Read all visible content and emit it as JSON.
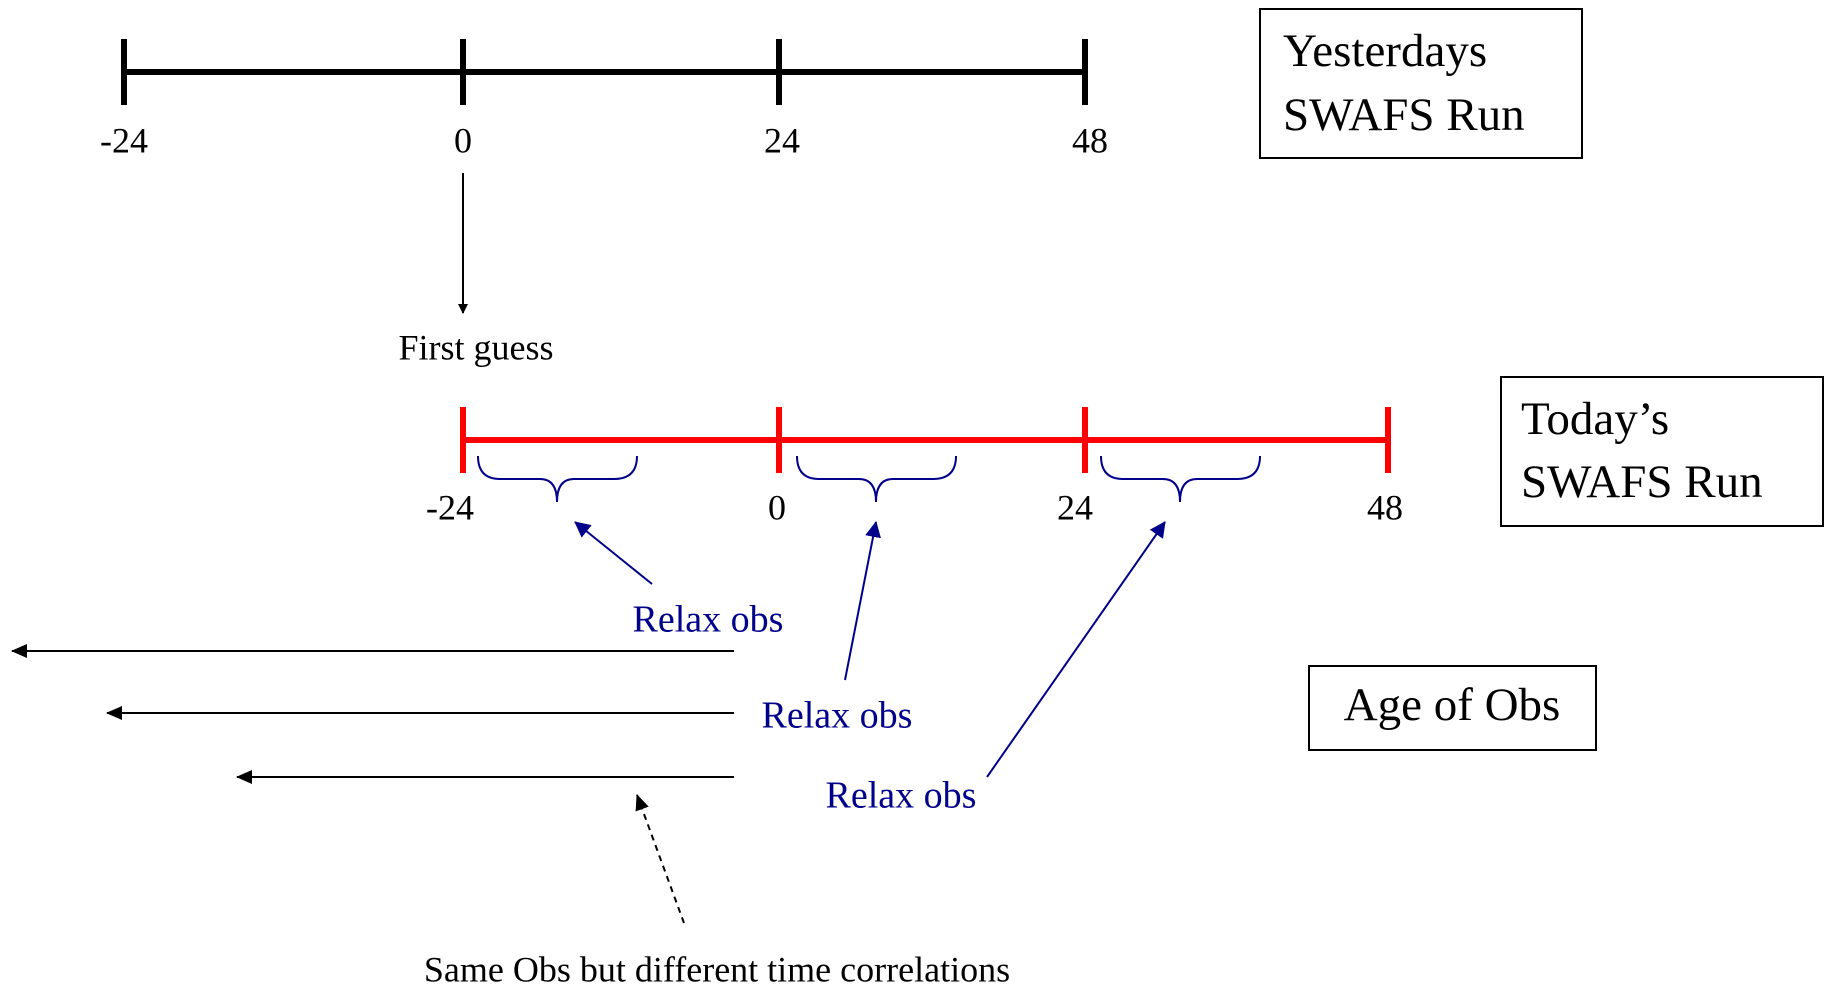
{
  "yesterday_timeline": {
    "ticks": [
      "-24",
      "0",
      "24",
      "48"
    ],
    "label_lines": [
      "Yesterdays",
      "SWAFS Run"
    ]
  },
  "first_guess": "First guess",
  "today_timeline": {
    "ticks": [
      "-24",
      "0",
      "24",
      "48"
    ],
    "label_lines": [
      "Today’s",
      "SWAFS Run"
    ]
  },
  "relax_labels": [
    "Relax obs",
    "Relax obs",
    "Relax obs"
  ],
  "age_of_obs": "Age of Obs",
  "caption": "Same Obs but different time correlations"
}
